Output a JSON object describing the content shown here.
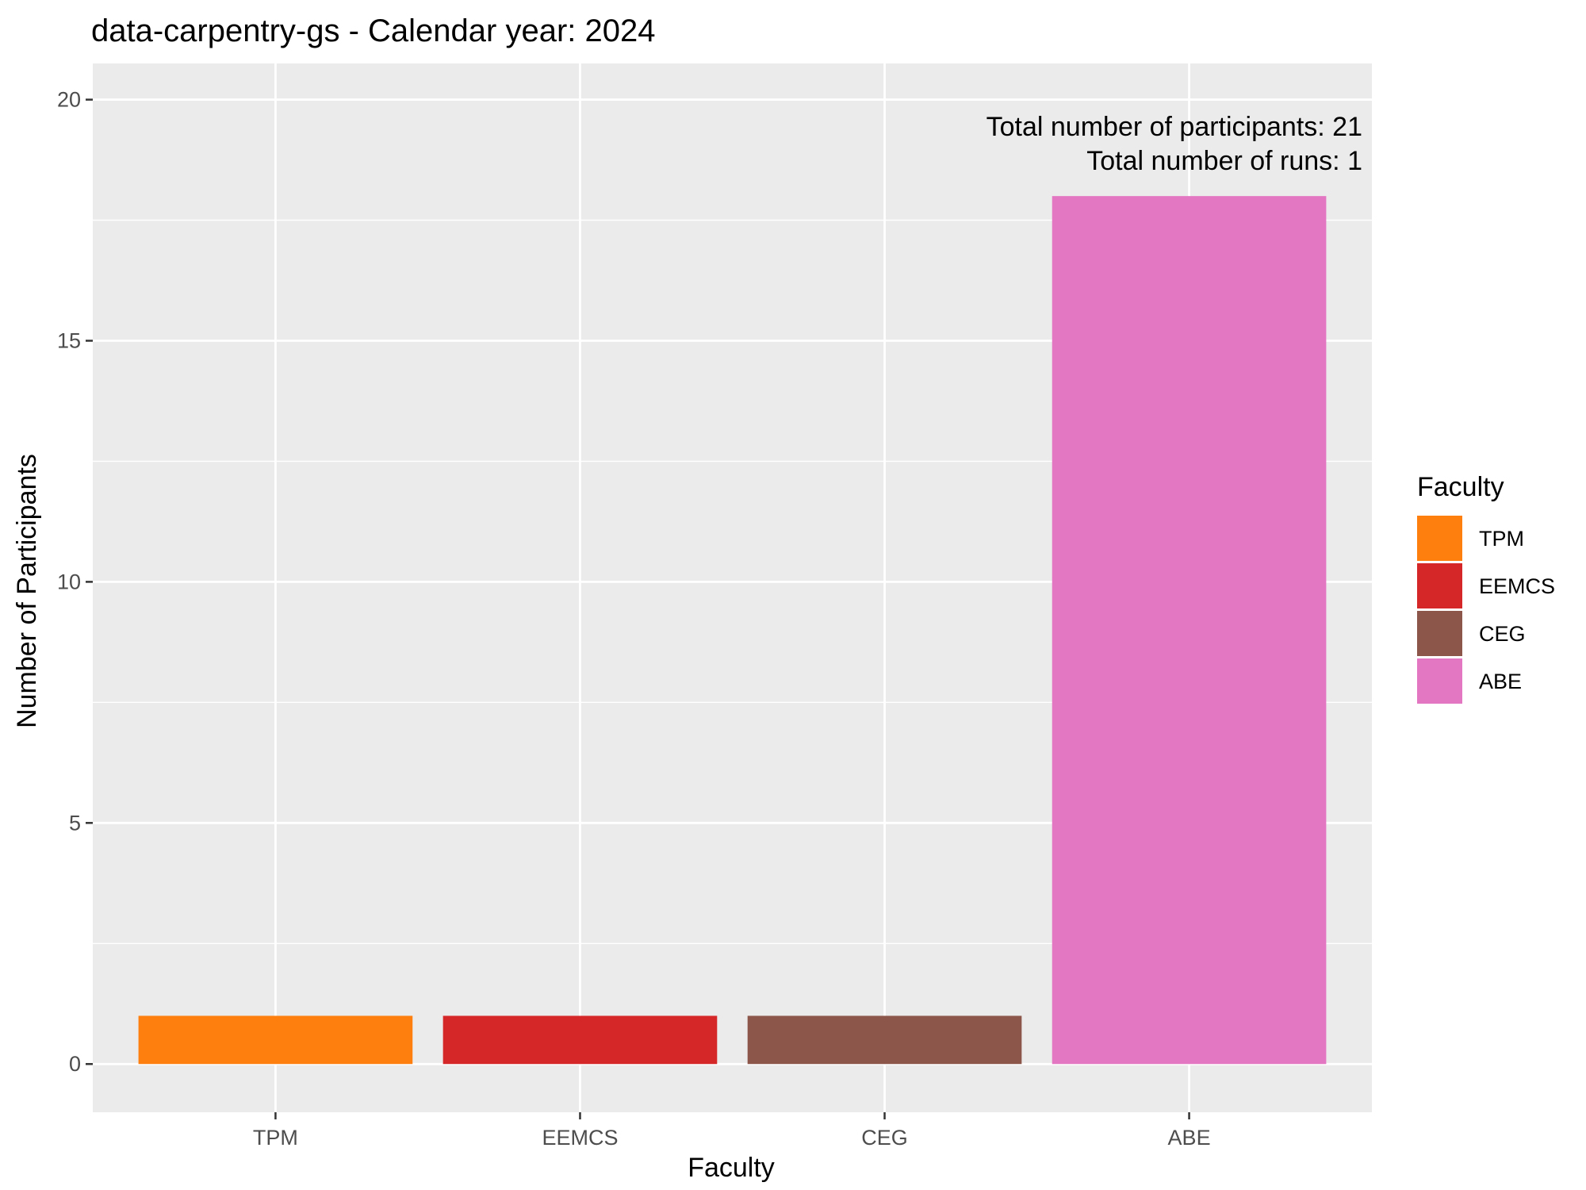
{
  "chart_data": {
    "type": "bar",
    "title": "data-carpentry-gs - Calendar year: 2024",
    "xlabel": "Faculty",
    "ylabel": "Number of Participants",
    "categories": [
      "TPM",
      "EEMCS",
      "CEG",
      "ABE"
    ],
    "values": [
      1,
      1,
      1,
      18
    ],
    "colors": [
      "#FF7F0E",
      "#D62728",
      "#8C564B",
      "#E377C2"
    ],
    "ylim": [
      -1,
      20.75
    ],
    "yticks": [
      0,
      5,
      10,
      15,
      20
    ],
    "grid": true,
    "legend": {
      "title": "Faculty",
      "placement": "right",
      "entries": [
        "TPM",
        "EEMCS",
        "CEG",
        "ABE"
      ]
    },
    "annotations": [
      "Total number of participants: 21",
      "Total number of runs: 1"
    ]
  }
}
